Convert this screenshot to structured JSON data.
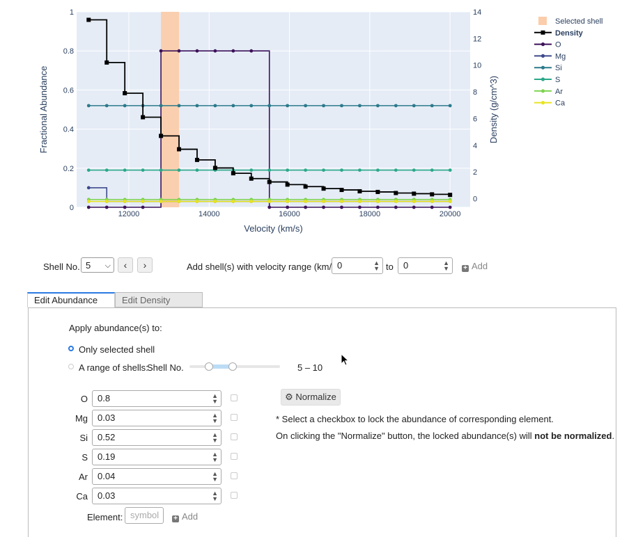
{
  "chart_data": {
    "type": "line",
    "xlabel": "Velocity (km/s)",
    "ylabel": "Fractional Abundance",
    "y2label": "Density (g/cm^3)",
    "xlim": [
      10700,
      20500
    ],
    "ylim": [
      0,
      1
    ],
    "y2lim": [
      -0.65,
      14
    ],
    "x_ticks": [
      12000,
      14000,
      16000,
      18000,
      20000
    ],
    "y_ticks": [
      0,
      0.2,
      0.4,
      0.6,
      0.8,
      1
    ],
    "y2_ticks": [
      0,
      2,
      4,
      6,
      8,
      10,
      12,
      14
    ],
    "grid": true,
    "legend_position": "top-right",
    "selected_shell": {
      "name": "Selected shell",
      "color": "#fbcdab",
      "x0": 12800,
      "x1": 13250
    },
    "x": [
      11000,
      11450,
      11900,
      12350,
      12800,
      13250,
      13700,
      14150,
      14600,
      15050,
      15500,
      15950,
      16400,
      16850,
      17300,
      17750,
      18200,
      18650,
      19100,
      19550,
      20000
    ],
    "density": {
      "name": "Density",
      "color": "#000000",
      "values": [
        13.4,
        10.2,
        7.9,
        6.1,
        4.7,
        3.7,
        2.9,
        2.3,
        1.9,
        1.5,
        1.25,
        1.05,
        0.9,
        0.75,
        0.65,
        0.55,
        0.5,
        0.42,
        0.37,
        0.32,
        0.28
      ]
    },
    "series": [
      {
        "name": "O",
        "color": "#3d1259",
        "values": [
          0,
          0,
          0,
          0,
          0.8,
          0.8,
          0.8,
          0.8,
          0.8,
          0.8,
          0,
          0,
          0,
          0,
          0,
          0,
          0,
          0,
          0,
          0,
          0
        ]
      },
      {
        "name": "Mg",
        "color": "#3e4a8c",
        "values": [
          0.1,
          0.03,
          0.03,
          0.03,
          0.03,
          0.03,
          0.03,
          0.03,
          0.03,
          0.03,
          0.03,
          0.03,
          0.03,
          0.03,
          0.03,
          0.03,
          0.03,
          0.03,
          0.03,
          0.03,
          0.03
        ]
      },
      {
        "name": "Si",
        "color": "#2b7a8b",
        "values": [
          0.52,
          0.52,
          0.52,
          0.52,
          0.52,
          0.52,
          0.52,
          0.52,
          0.52,
          0.52,
          0.52,
          0.52,
          0.52,
          0.52,
          0.52,
          0.52,
          0.52,
          0.52,
          0.52,
          0.52,
          0.52
        ]
      },
      {
        "name": "S",
        "color": "#2aa889",
        "values": [
          0.19,
          0.19,
          0.19,
          0.19,
          0.19,
          0.19,
          0.19,
          0.19,
          0.19,
          0.19,
          0.19,
          0.19,
          0.19,
          0.19,
          0.19,
          0.19,
          0.19,
          0.19,
          0.19,
          0.19,
          0.19
        ]
      },
      {
        "name": "Ar",
        "color": "#7ed34f",
        "values": [
          0.04,
          0.04,
          0.04,
          0.04,
          0.04,
          0.04,
          0.04,
          0.04,
          0.04,
          0.04,
          0.04,
          0.04,
          0.04,
          0.04,
          0.04,
          0.04,
          0.04,
          0.04,
          0.04,
          0.04,
          0.04
        ]
      },
      {
        "name": "Ca",
        "color": "#e8e420",
        "values": [
          0.03,
          0.03,
          0.03,
          0.03,
          0.03,
          0.03,
          0.03,
          0.03,
          0.03,
          0.03,
          0.03,
          0.03,
          0.03,
          0.03,
          0.03,
          0.03,
          0.03,
          0.03,
          0.03,
          0.03,
          0.03
        ]
      }
    ]
  },
  "controls": {
    "shell_label": "Shell No.",
    "shell_value": "5",
    "add_range_label": "Add shell(s) with velocity range (km/s):",
    "range_from": "0",
    "to_label": "to",
    "range_to": "0",
    "add_label": "Add"
  },
  "tabs": {
    "abundance": "Edit Abundance",
    "density": "Edit Density"
  },
  "panel": {
    "apply_label": "Apply abundance(s) to:",
    "only_selected": "Only selected shell",
    "range_shells": "A range of shells:",
    "shell_no": "Shell No.",
    "range_value": "5 – 10",
    "slider_min": 5,
    "slider_max": 10,
    "normalize": "Normalize",
    "note1": "* Select a checkbox to lock the abundance of corresponding element.",
    "note2_pre": "On clicking the \"Normalize\" button, the locked abundance(s) will ",
    "note2_bold": "not be normalized",
    "note2_post": ".",
    "element_label": "Element:",
    "element_placeholder": "symbol",
    "add_label": "Add",
    "elements": [
      {
        "name": "O",
        "value": "0.8"
      },
      {
        "name": "Mg",
        "value": "0.03"
      },
      {
        "name": "Si",
        "value": "0.52"
      },
      {
        "name": "S",
        "value": "0.19"
      },
      {
        "name": "Ar",
        "value": "0.04"
      },
      {
        "name": "Ca",
        "value": "0.03"
      }
    ]
  }
}
